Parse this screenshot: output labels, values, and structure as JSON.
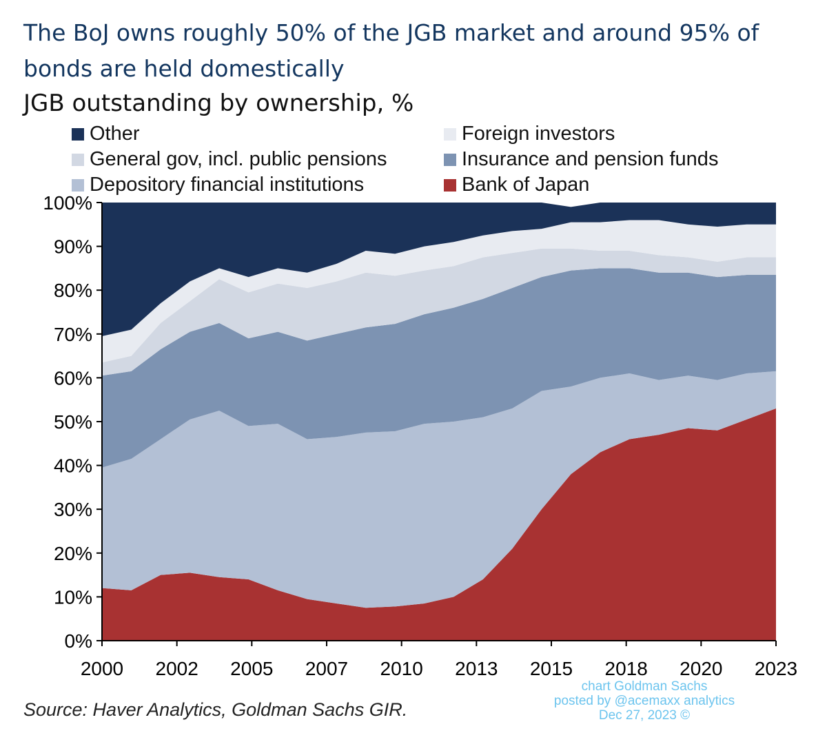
{
  "title": "The BoJ owns roughly 50% of the JGB market and around 95% of bonds are held domestically",
  "subtitle": "JGB outstanding by ownership, %",
  "source": "Source: Haver Analytics, Goldman Sachs GIR.",
  "credit": {
    "line1": "chart Goldman Sachs",
    "line2": "posted by @acemaxx analytics",
    "line3": "Dec 27, 2023 ©"
  },
  "chart_data": {
    "type": "area",
    "stacked": true,
    "xlim": [
      2000,
      2023
    ],
    "ylim": [
      0,
      100
    ],
    "y_ticks": [
      "0%",
      "10%",
      "20%",
      "30%",
      "40%",
      "50%",
      "60%",
      "70%",
      "80%",
      "90%",
      "100%"
    ],
    "x_tick_labels": [
      "2000",
      "2002",
      "2005",
      "2007",
      "2010",
      "2013",
      "2015",
      "2018",
      "2020",
      "2023"
    ],
    "x": [
      2000,
      2001,
      2002,
      2003,
      2004,
      2005,
      2006,
      2007,
      2008,
      2009,
      2010,
      2011,
      2012,
      2013,
      2014,
      2015,
      2016,
      2017,
      2018,
      2019,
      2020,
      2021,
      2022,
      2023
    ],
    "series": [
      {
        "name": "Bank of Japan",
        "color": "#a83232",
        "values": [
          12,
          11.5,
          15,
          15.5,
          14.5,
          14,
          11.5,
          9.5,
          8.5,
          7.5,
          7.8,
          8.5,
          10,
          14,
          21,
          30,
          38,
          43,
          46,
          47,
          48.5,
          48,
          50.5,
          53
        ]
      },
      {
        "name": "Depository financial institutions",
        "color": "#b3c0d5",
        "values": [
          27.5,
          30,
          31,
          35,
          38,
          35,
          38,
          36.5,
          38,
          40,
          40,
          41,
          40,
          37,
          32,
          27,
          20,
          17,
          15,
          12.5,
          12,
          11.5,
          10.5,
          8.5
        ]
      },
      {
        "name": "Insurance and pension funds",
        "color": "#7d93b2",
        "values": [
          21,
          20,
          20.5,
          20,
          20,
          20,
          21,
          22.5,
          23.5,
          24,
          24.5,
          25,
          26,
          27,
          27.5,
          26,
          26.5,
          25,
          24,
          24.5,
          23.5,
          23.5,
          22.5,
          22
        ]
      },
      {
        "name": "General gov, incl. public pensions",
        "color": "#d2d8e3",
        "values": [
          3,
          3.5,
          6,
          7,
          10,
          10.5,
          11,
          12,
          12,
          12.5,
          11,
          10,
          9.5,
          9.5,
          8,
          6.5,
          5,
          4,
          4,
          4,
          3.5,
          3.5,
          4,
          4
        ]
      },
      {
        "name": "Foreign investors",
        "color": "#e8ebf1",
        "values": [
          6,
          6,
          4.5,
          4.5,
          2.5,
          3.5,
          3.5,
          3.5,
          4,
          5,
          5,
          5.5,
          5.5,
          5,
          5,
          4.5,
          6,
          6.5,
          7,
          8,
          7.5,
          8,
          7.5,
          7.5
        ]
      },
      {
        "name": "Other",
        "color": "#1b3258",
        "values": [
          30.5,
          29,
          23,
          18,
          15,
          17,
          15,
          16,
          14,
          11,
          11.7,
          10,
          9,
          7.5,
          6.5,
          6,
          3.5,
          4.5,
          4,
          4,
          5,
          5.5,
          5,
          5
        ]
      }
    ],
    "legend_order": [
      "Other",
      "Foreign investors",
      "General gov, incl. public pensions",
      "Insurance and pension funds",
      "Depository financial institutions",
      "Bank of Japan"
    ],
    "legend_placement": "top",
    "grid": false
  }
}
